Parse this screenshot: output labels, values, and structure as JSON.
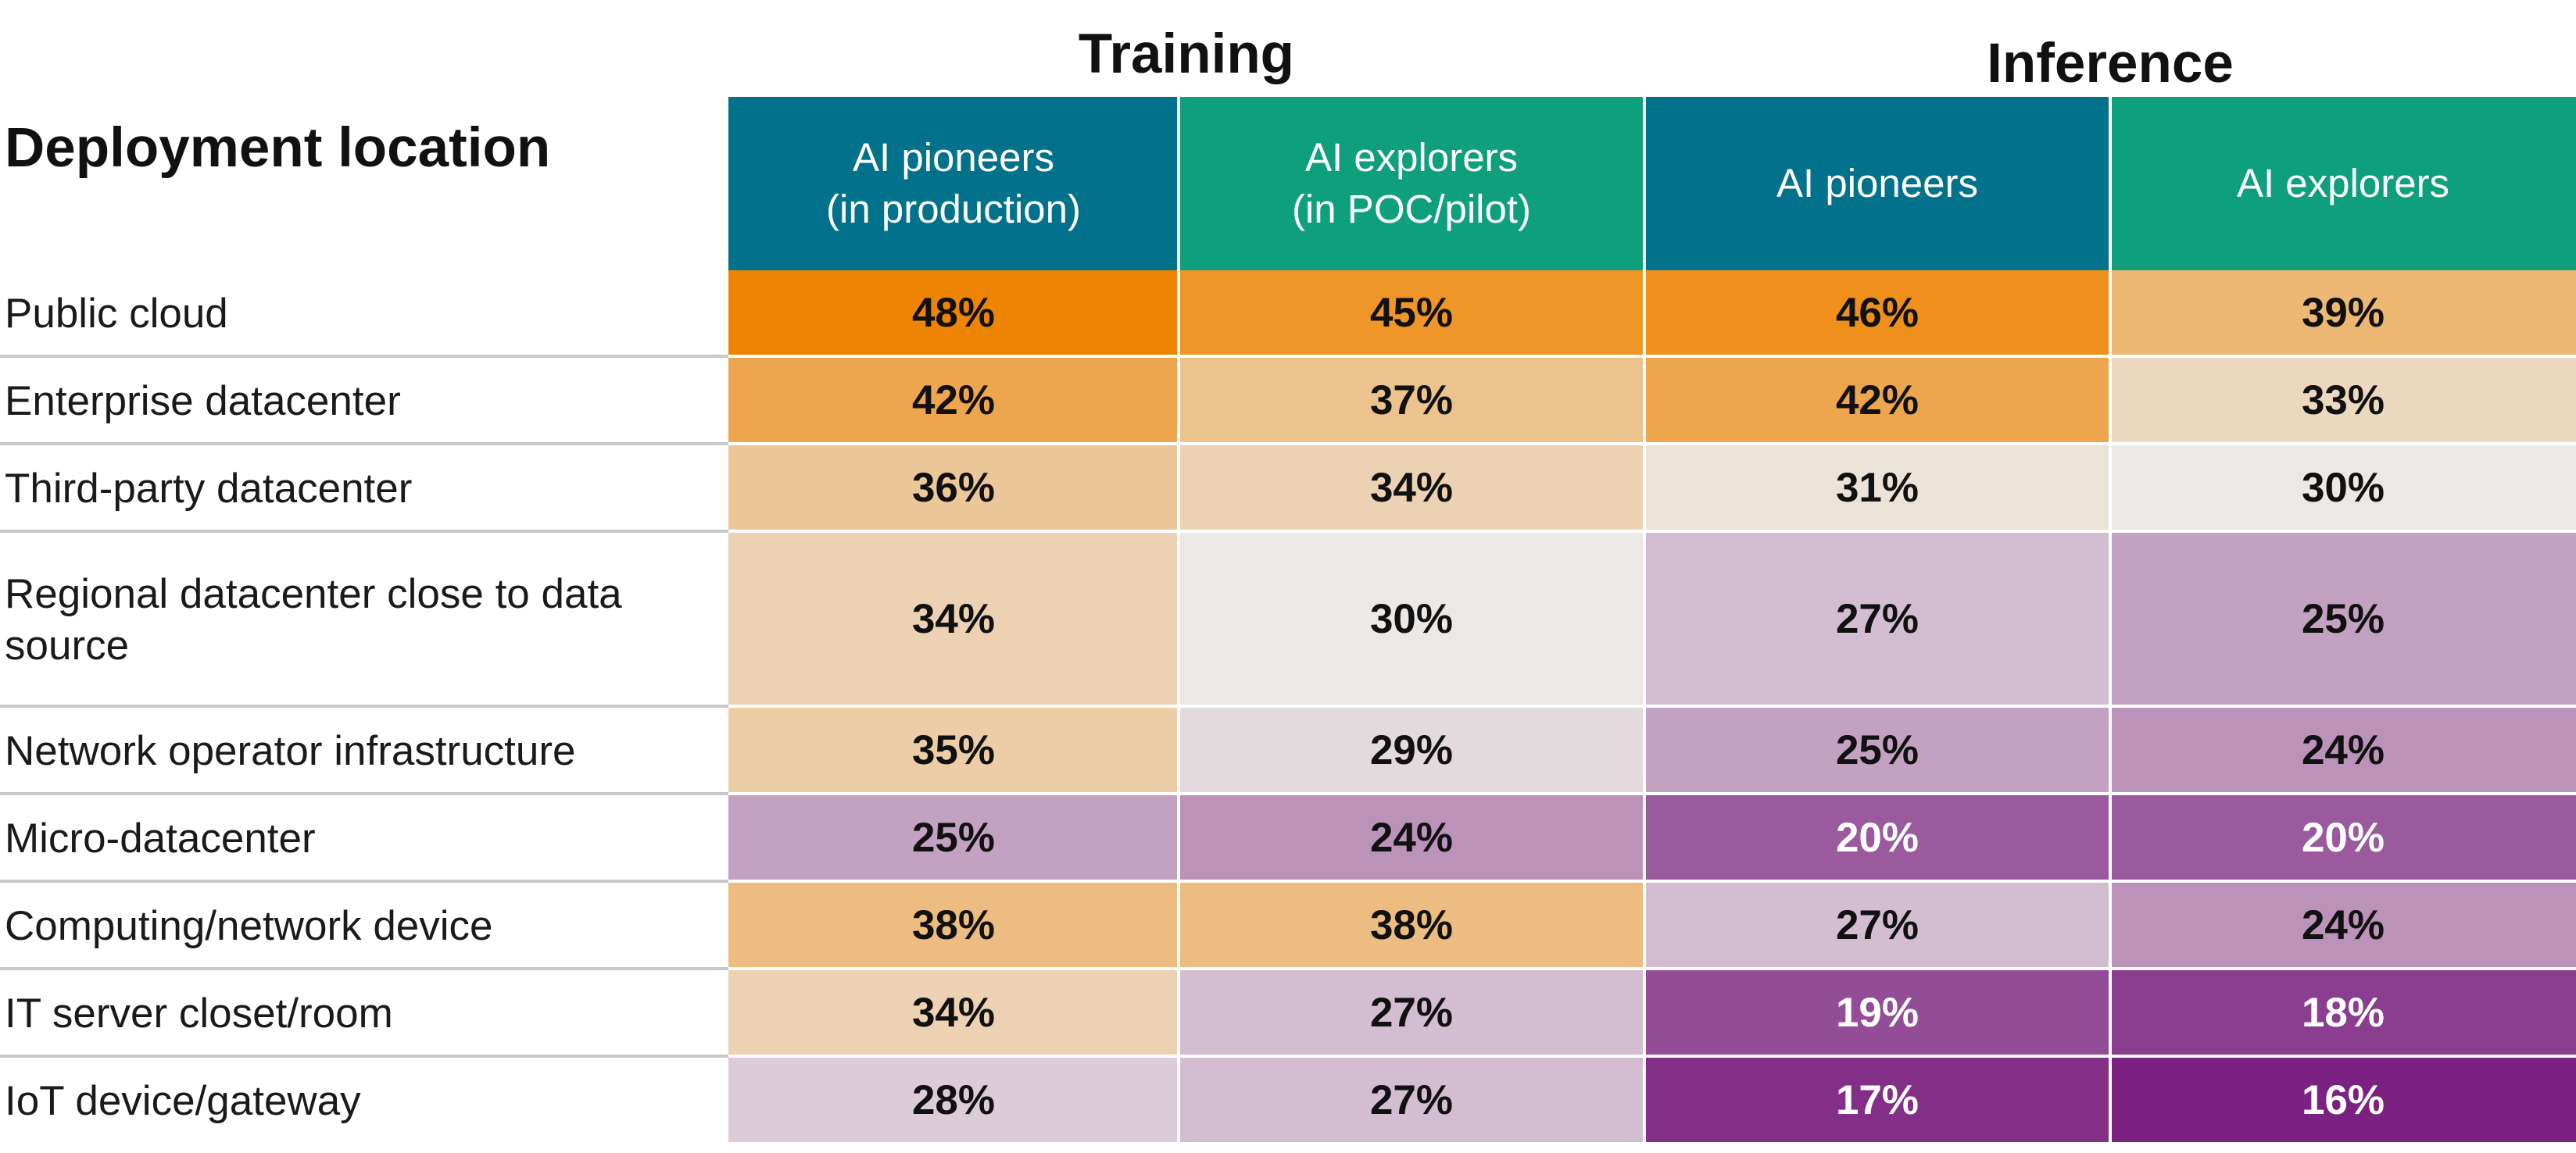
{
  "chart_data": {
    "type": "table",
    "title": "",
    "row_header": "Deployment  location",
    "groups": [
      {
        "name": "Training",
        "columns": [
          0,
          1
        ]
      },
      {
        "name": "Inference",
        "columns": [
          2,
          3
        ]
      }
    ],
    "columns": [
      {
        "label": "AI pioneers\n(in production)",
        "color": "#02718c"
      },
      {
        "label": "AI explorers\n(in POC/pilot)",
        "color": "#0ea07c"
      },
      {
        "label": "AI pioneers",
        "color": "#02718c"
      },
      {
        "label": "AI explorers",
        "color": "#0ea07c"
      }
    ],
    "rows": [
      {
        "label": "Public cloud",
        "values": [
          48,
          45,
          46,
          39
        ]
      },
      {
        "label": "Enterprise datacenter",
        "values": [
          42,
          37,
          42,
          33
        ]
      },
      {
        "label": "Third-party datacenter",
        "values": [
          36,
          34,
          31,
          30
        ]
      },
      {
        "label": "Regional datacenter close to data source",
        "values": [
          34,
          30,
          27,
          25
        ]
      },
      {
        "label": "Network operator infrastructure",
        "values": [
          35,
          29,
          25,
          24
        ]
      },
      {
        "label": "Micro-datacenter",
        "values": [
          25,
          24,
          20,
          20
        ]
      },
      {
        "label": "Computing/network device",
        "values": [
          38,
          38,
          27,
          24
        ]
      },
      {
        "label": "IT server closet/room",
        "values": [
          34,
          27,
          19,
          18
        ]
      },
      {
        "label": "IoT device/gateway",
        "values": [
          28,
          27,
          17,
          16
        ]
      }
    ],
    "value_suffix": "%",
    "color_scale": {
      "low": "#7b2181",
      "mid": "#ebe8e5",
      "high": "#ee8502"
    }
  }
}
